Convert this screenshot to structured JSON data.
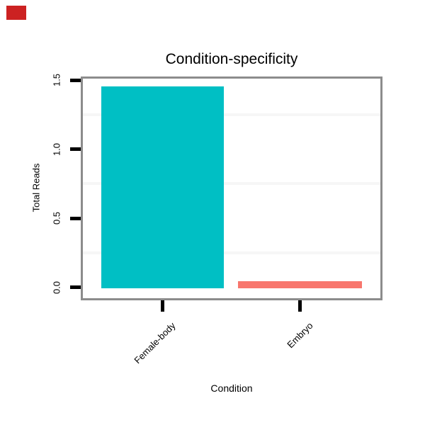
{
  "marker": {
    "color": "#CC2222"
  },
  "chart_data": {
    "type": "bar",
    "title": "Condition-specificity",
    "xlabel": "Condition",
    "ylabel": "Total Reads",
    "categories": [
      "Female-body",
      "Embryo"
    ],
    "values": [
      1.46,
      0.05
    ],
    "bar_colors": [
      "#00BFC4",
      "#F8766D"
    ],
    "ylim": [
      0,
      1.5
    ],
    "ytick_values": [
      0.0,
      0.5,
      1.0,
      1.5
    ],
    "ytick_labels": [
      "0.0",
      "0.5",
      "1.0",
      "1.5"
    ],
    "minor_gridline_values": [
      0.25,
      0.75,
      1.25
    ],
    "minor_gridline_color": "#F6F6F6",
    "panel_border_color": "#8C8C8C",
    "axis_tick_color": "#000000",
    "text_color": "#000000",
    "background": "#FFFFFF",
    "x_tick_label_rotation_deg": 45,
    "y_tick_label_rotation_deg": 90,
    "legend_position": "none",
    "grid": "minor horizontal only (very faint)"
  }
}
